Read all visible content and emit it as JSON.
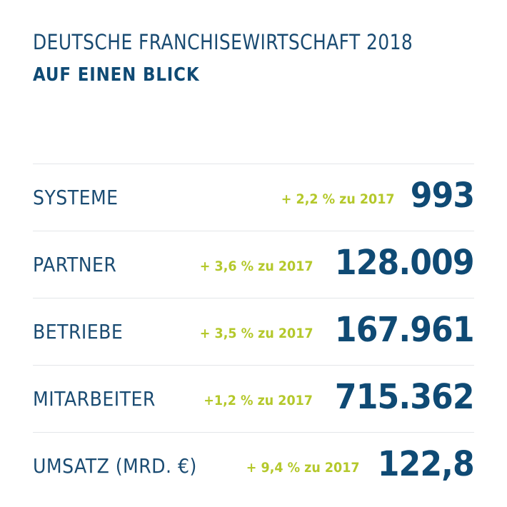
{
  "header": {
    "title": "DEUTSCHE FRANCHISEWIRTSCHAFT 2018",
    "subtitle": "AUF EINEN BLICK"
  },
  "stats": [
    {
      "label": "SYSTEME",
      "change": "+ 2,2 % zu 2017",
      "value": "993"
    },
    {
      "label": "PARTNER",
      "change": "+ 3,6 % zu 2017",
      "value": "128.009"
    },
    {
      "label": "BETRIEBE",
      "change": "+ 3,5 % zu 2017",
      "value": "167.961"
    },
    {
      "label": "MITARBEITER",
      "change": "+1,2 % zu 2017",
      "value": "715.362"
    },
    {
      "label": "UMSATZ (MRD. €)",
      "change": "+ 9,4 % zu 2017",
      "value": "122,8"
    }
  ],
  "colors": {
    "primary": "#0f4a74",
    "accent": "#b4c82b",
    "divider": "#e3e6e9"
  }
}
